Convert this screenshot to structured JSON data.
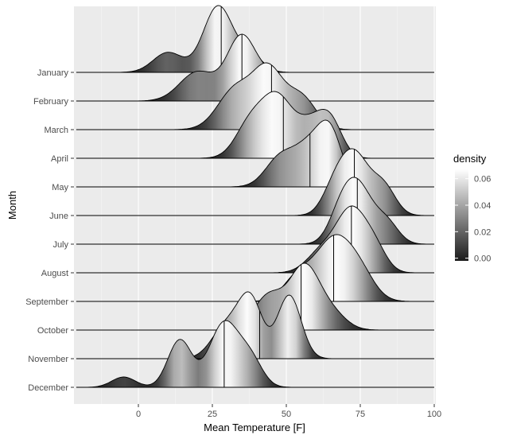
{
  "chart_data": {
    "type": "ridgeline",
    "xlabel": "Mean Temperature [F]",
    "ylabel": "Month",
    "x_ticks": [
      0,
      25,
      50,
      75,
      100
    ],
    "xlim": [
      -21,
      100
    ],
    "grid": true,
    "legend": {
      "title": "density",
      "ticks": [
        "0.06",
        "0.04",
        "0.02",
        "0.00"
      ],
      "tick_values": [
        0.06,
        0.04,
        0.02,
        0.0
      ],
      "range": [
        -0.002,
        0.067
      ],
      "placement": "right",
      "color_low": "#1a1a1a",
      "color_high": "#ffffff"
    },
    "months": [
      {
        "name": "January",
        "median": 28,
        "peaks": [
          [
            10,
            5,
            0.3
          ],
          [
            27,
            5,
            1.0
          ],
          [
            38,
            4,
            0.25
          ]
        ]
      },
      {
        "name": "February",
        "median": 35,
        "peaks": [
          [
            20,
            6,
            0.45
          ],
          [
            35,
            5,
            1.0
          ],
          [
            45,
            4,
            0.3
          ]
        ]
      },
      {
        "name": "March",
        "median": 45,
        "peaks": [
          [
            33,
            6,
            0.7
          ],
          [
            44,
            5,
            0.95
          ],
          [
            55,
            5,
            0.55
          ]
        ]
      },
      {
        "name": "April",
        "median": 49,
        "peaks": [
          [
            38,
            5,
            0.6
          ],
          [
            47,
            5,
            0.95
          ],
          [
            65,
            4,
            0.55
          ],
          [
            58,
            5,
            0.55
          ]
        ]
      },
      {
        "name": "May",
        "median": 58,
        "peaks": [
          [
            48,
            5,
            0.6
          ],
          [
            58,
            5,
            0.8
          ],
          [
            65,
            4,
            1.0
          ]
        ]
      },
      {
        "name": "June",
        "median": 73,
        "peaks": [
          [
            66,
            4,
            0.35
          ],
          [
            73,
            5,
            1.0
          ],
          [
            83,
            4,
            0.45
          ]
        ]
      },
      {
        "name": "July",
        "median": 74,
        "peaks": [
          [
            68,
            4,
            0.35
          ],
          [
            74,
            5,
            1.0
          ],
          [
            84,
            4,
            0.35
          ]
        ]
      },
      {
        "name": "August",
        "median": 72,
        "peaks": [
          [
            62,
            5,
            0.35
          ],
          [
            72,
            5,
            1.0
          ],
          [
            80,
            4,
            0.35
          ]
        ]
      },
      {
        "name": "September",
        "median": 66,
        "peaks": [
          [
            54,
            5,
            0.4
          ],
          [
            66,
            6,
            1.0
          ],
          [
            75,
            5,
            0.4
          ]
        ]
      },
      {
        "name": "October",
        "median": 55,
        "peaks": [
          [
            44,
            5,
            0.5
          ],
          [
            56,
            5,
            0.9
          ],
          [
            65,
            5,
            0.25
          ]
        ]
      },
      {
        "name": "November",
        "median": 41,
        "peaks": [
          [
            30,
            5,
            0.45
          ],
          [
            38,
            4,
            0.75
          ],
          [
            51,
            4,
            0.85
          ]
        ]
      },
      {
        "name": "December",
        "median": 29,
        "peaks": [
          [
            -5,
            4,
            0.12
          ],
          [
            14,
            4,
            0.55
          ],
          [
            29,
            5,
            0.75
          ],
          [
            38,
            4,
            0.3
          ]
        ]
      }
    ]
  }
}
